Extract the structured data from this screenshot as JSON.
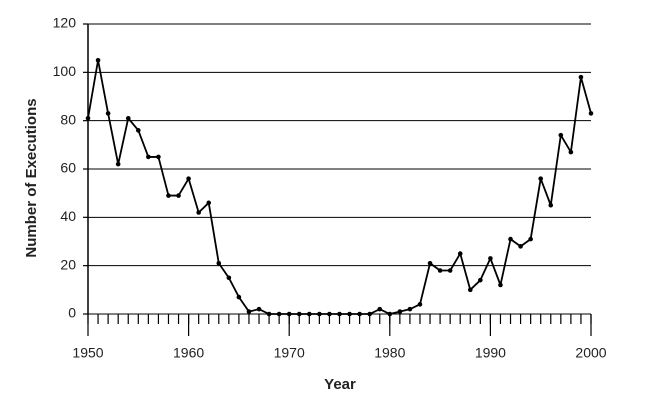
{
  "chart_data": {
    "type": "line",
    "xlabel": "Year",
    "ylabel": "Number of Executions",
    "x": [
      1950,
      1951,
      1952,
      1953,
      1954,
      1955,
      1956,
      1957,
      1958,
      1959,
      1960,
      1961,
      1962,
      1963,
      1964,
      1965,
      1966,
      1967,
      1968,
      1969,
      1970,
      1971,
      1972,
      1973,
      1974,
      1975,
      1976,
      1977,
      1978,
      1979,
      1980,
      1981,
      1982,
      1983,
      1984,
      1985,
      1986,
      1987,
      1988,
      1989,
      1990,
      1991,
      1992,
      1993,
      1994,
      1995,
      1996,
      1997,
      1998,
      1999,
      2000
    ],
    "series": [
      {
        "color": "#000000",
        "values": [
          81,
          105,
          83,
          62,
          81,
          76,
          65,
          65,
          49,
          49,
          56,
          42,
          46,
          21,
          15,
          7,
          1,
          2,
          0,
          0,
          0,
          0,
          0,
          0,
          0,
          0,
          0,
          0,
          0,
          2,
          0,
          1,
          2,
          4,
          21,
          18,
          18,
          25,
          10,
          14,
          23,
          12,
          31,
          28,
          31,
          56,
          45,
          74,
          67,
          98,
          83
        ]
      }
    ],
    "xlim": [
      1950,
      2000
    ],
    "xticks": [
      1950,
      1960,
      1970,
      1980,
      1990,
      2000
    ],
    "ylim": [
      0,
      120
    ],
    "yticks": [
      0,
      20,
      40,
      60,
      80,
      100,
      120
    ],
    "grid": true
  }
}
